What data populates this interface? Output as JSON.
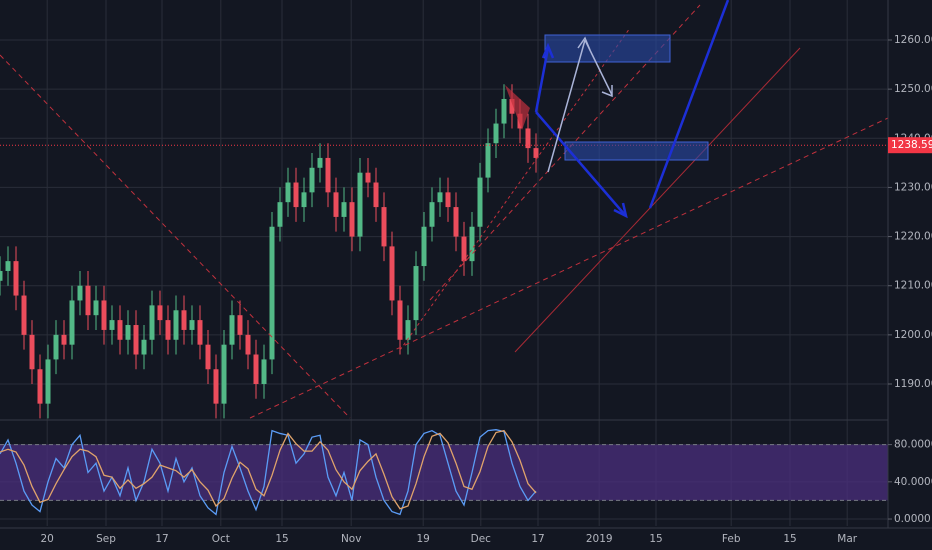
{
  "chart_data": [
    {
      "type": "candlestick",
      "open": [
        1211,
        1213,
        1215,
        1208,
        1200,
        1193,
        1186,
        1195,
        1200,
        1198,
        1207,
        1210,
        1204,
        1207,
        1201,
        1203,
        1199,
        1202,
        1196,
        1199,
        1206,
        1203,
        1199,
        1205,
        1201,
        1203,
        1198,
        1193,
        1186,
        1198,
        1204,
        1200,
        1196,
        1190,
        1195,
        1222,
        1227,
        1231,
        1226,
        1229,
        1234,
        1236,
        1229,
        1224,
        1227,
        1220,
        1233,
        1231,
        1226,
        1218,
        1207,
        1199,
        1203,
        1214,
        1222,
        1227,
        1229,
        1226,
        1220,
        1215,
        1222,
        1232,
        1239,
        1243,
        1248,
        1245,
        1242,
        1238
      ],
      "high": [
        1216,
        1218,
        1218,
        1211,
        1203,
        1196,
        1198,
        1203,
        1203,
        1210,
        1213,
        1213,
        1210,
        1210,
        1206,
        1206,
        1205,
        1205,
        1202,
        1209,
        1209,
        1206,
        1208,
        1208,
        1206,
        1206,
        1201,
        1196,
        1201,
        1207,
        1207,
        1203,
        1199,
        1198,
        1225,
        1230,
        1234,
        1234,
        1232,
        1237,
        1239,
        1239,
        1232,
        1230,
        1230,
        1236,
        1236,
        1234,
        1229,
        1221,
        1210,
        1206,
        1217,
        1225,
        1230,
        1232,
        1232,
        1229,
        1223,
        1225,
        1235,
        1242,
        1246,
        1251,
        1251,
        1248,
        1245,
        1241
      ],
      "low": [
        1208,
        1210,
        1205,
        1197,
        1190,
        1183,
        1183,
        1192,
        1195,
        1195,
        1204,
        1201,
        1201,
        1198,
        1198,
        1196,
        1196,
        1193,
        1193,
        1196,
        1200,
        1196,
        1196,
        1198,
        1198,
        1195,
        1190,
        1183,
        1183,
        1195,
        1197,
        1193,
        1187,
        1187,
        1192,
        1219,
        1224,
        1223,
        1223,
        1226,
        1231,
        1226,
        1221,
        1221,
        1217,
        1217,
        1228,
        1223,
        1215,
        1204,
        1196,
        1196,
        1200,
        1211,
        1219,
        1224,
        1223,
        1217,
        1212,
        1212,
        1219,
        1229,
        1236,
        1240,
        1242,
        1239,
        1235,
        1233
      ],
      "close": [
        1213,
        1215,
        1208,
        1200,
        1193,
        1186,
        1195,
        1200,
        1198,
        1207,
        1210,
        1204,
        1207,
        1201,
        1203,
        1199,
        1202,
        1196,
        1199,
        1206,
        1203,
        1199,
        1205,
        1201,
        1203,
        1198,
        1193,
        1186,
        1198,
        1204,
        1200,
        1196,
        1190,
        1195,
        1222,
        1227,
        1231,
        1226,
        1229,
        1234,
        1236,
        1229,
        1224,
        1227,
        1220,
        1233,
        1231,
        1226,
        1218,
        1207,
        1199,
        1203,
        1214,
        1222,
        1227,
        1229,
        1226,
        1220,
        1215,
        1222,
        1232,
        1239,
        1243,
        1248,
        1245,
        1242,
        1238,
        1236
      ],
      "up_color": "#53b987",
      "down_color": "#eb4d5c",
      "xlim": [
        0,
        111
      ],
      "xticks": [
        {
          "value": 5.9,
          "label": "20"
        },
        {
          "value": 13.25,
          "label": "Sep"
        },
        {
          "value": 20.25,
          "label": "17"
        },
        {
          "value": 27.6,
          "label": "Oct"
        },
        {
          "value": 35.25,
          "label": "15"
        },
        {
          "value": 43.9,
          "label": "Nov"
        },
        {
          "value": 52.9,
          "label": "19"
        },
        {
          "value": 60.1,
          "label": "Dec"
        },
        {
          "value": 67.25,
          "label": "17"
        },
        {
          "value": 74.9,
          "label": "2019"
        },
        {
          "value": 82,
          "label": "15"
        },
        {
          "value": 91.4,
          "label": "Feb"
        },
        {
          "value": 98.75,
          "label": "15"
        },
        {
          "value": 105.9,
          "label": "Mar"
        }
      ],
      "ylim": [
        1183.08,
        1268.14
      ],
      "yticks": [
        {
          "value": 1190,
          "label": "1190.000"
        },
        {
          "value": 1200,
          "label": "1200.000"
        },
        {
          "value": 1210,
          "label": "1210.000"
        },
        {
          "value": 1220,
          "label": "1220.000"
        },
        {
          "value": 1230,
          "label": "1230.000"
        },
        {
          "value": 1240,
          "label": "1240.000"
        },
        {
          "value": 1250,
          "label": "1250.000"
        },
        {
          "value": 1260,
          "label": "1260.000"
        }
      ],
      "last_price": 1238.593,
      "last_price_color": "#f23645",
      "grid": true
    },
    {
      "type": "line",
      "xlim": [
        0,
        111
      ],
      "ylim": [
        -7.5,
        104.3
      ],
      "yticks": [
        {
          "value": 0,
          "label": "0.0000"
        },
        {
          "value": 40,
          "label": "40.0000"
        },
        {
          "value": 80,
          "label": "80.0000"
        }
      ],
      "band": [
        20,
        80
      ],
      "band_color": "#4b2f7e",
      "series": [
        {
          "color": "#5b9cf6",
          "values": [
            70,
            85,
            60,
            30,
            15,
            8,
            40,
            65,
            55,
            80,
            90,
            50,
            60,
            30,
            45,
            25,
            55,
            20,
            40,
            75,
            60,
            30,
            65,
            40,
            55,
            25,
            12,
            5,
            50,
            78,
            55,
            30,
            10,
            35,
            95,
            92,
            90,
            60,
            70,
            88,
            90,
            45,
            25,
            50,
            20,
            85,
            80,
            45,
            20,
            8,
            5,
            30,
            80,
            92,
            95,
            90,
            60,
            30,
            15,
            50,
            88,
            95,
            96,
            94,
            60,
            35,
            20,
            30
          ]
        },
        {
          "color": "#e0a36b",
          "values": [
            72,
            75,
            72,
            58,
            35,
            18,
            21,
            38,
            53,
            67,
            75,
            73,
            67,
            47,
            45,
            33,
            42,
            33,
            38,
            45,
            58,
            55,
            52,
            45,
            53,
            40,
            31,
            14,
            22,
            44,
            61,
            54,
            32,
            25,
            47,
            74,
            92,
            81,
            73,
            73,
            83,
            74,
            53,
            40,
            32,
            52,
            62,
            70,
            48,
            24,
            11,
            14,
            38,
            67,
            89,
            92,
            82,
            60,
            35,
            32,
            51,
            78,
            93,
            95,
            83,
            63,
            38,
            28
          ]
        }
      ],
      "grid": true
    }
  ]
}
